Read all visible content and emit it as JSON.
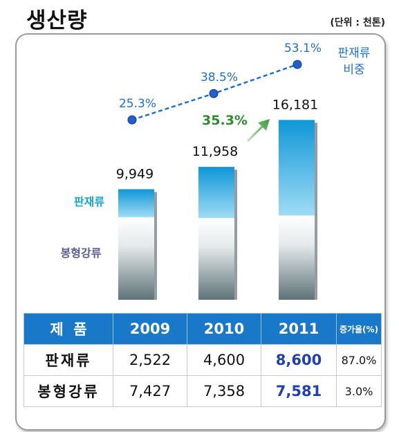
{
  "title": "생산량",
  "unit": "(단위 : 천톤)",
  "chart_data": {
    "type": "bar",
    "categories": [
      "2009",
      "2010",
      "2011"
    ],
    "series": [
      {
        "name": "봉형강류",
        "values": [
          7427,
          7358,
          7581
        ]
      },
      {
        "name": "판재류",
        "values": [
          2522,
          4600,
          8600
        ]
      }
    ],
    "totals": [
      9949,
      11958,
      16181
    ],
    "total_labels": [
      "9,949",
      "11,958",
      "16,181"
    ],
    "line_series": {
      "name": "판재류 비중",
      "values": [
        25.3,
        38.5,
        53.1
      ],
      "labels": [
        "25.3%",
        "38.5%",
        "53.1%"
      ]
    },
    "growth_annotation": "35.3%",
    "legend": {
      "top_series": "판재류",
      "bottom_series": "봉형강류",
      "line_line1": "판재류",
      "line_line2": "비중"
    },
    "colors": {
      "upper": "#38b4e6",
      "lower": "#6a8188",
      "line": "#1f6fcf",
      "growth": "#2e8b2e"
    }
  },
  "table": {
    "headers": [
      "제  품",
      "2009",
      "2010",
      "2011",
      "증가율(%)"
    ],
    "rows": [
      {
        "label": "판재류",
        "values": [
          "2,522",
          "4,600",
          "8,600"
        ],
        "rate": "87.0%"
      },
      {
        "label": "봉형강류",
        "values": [
          "7,427",
          "7,358",
          "7,581"
        ],
        "rate": "3.0%"
      }
    ]
  }
}
